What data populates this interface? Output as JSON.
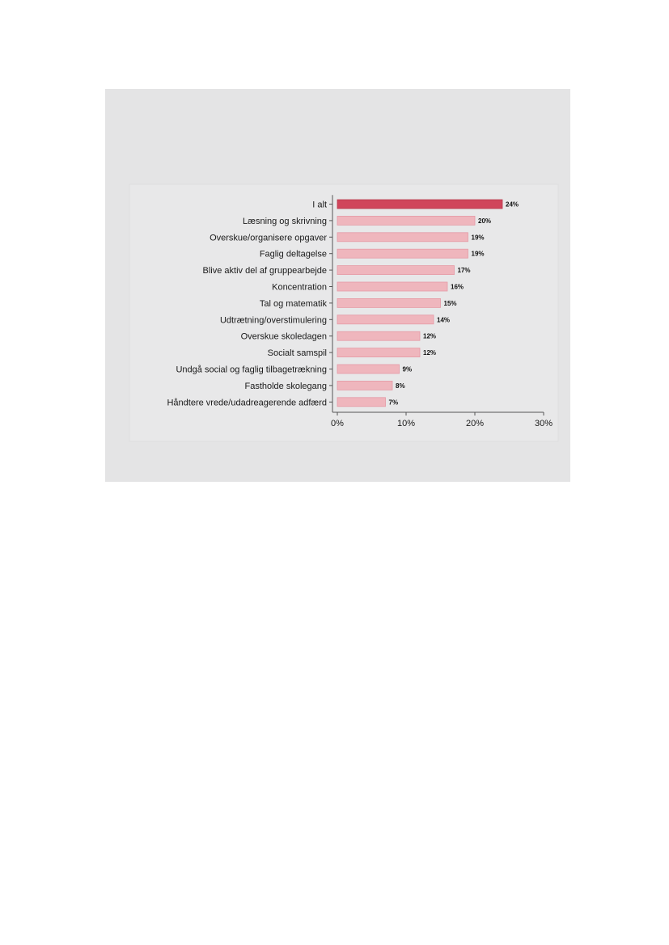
{
  "chart_data": {
    "type": "bar",
    "orientation": "horizontal",
    "categories": [
      "I alt",
      "Læsning og skrivning",
      "Overskue/organisere opgaver",
      "Faglig deltagelse",
      "Blive aktiv del af gruppearbejde",
      "Koncentration",
      "Tal og matematik",
      "Udtrætning/overstimulering",
      "Overskue skoledagen",
      "Socialt samspil",
      "Undgå social og faglig tilbagetrækning",
      "Fastholde skolegang",
      "Håndtere vrede/udadreagerende adfærd"
    ],
    "values": [
      24,
      20,
      19,
      19,
      17,
      16,
      15,
      14,
      12,
      12,
      9,
      8,
      7
    ],
    "value_labels": [
      "24%",
      "20%",
      "19%",
      "19%",
      "17%",
      "16%",
      "15%",
      "14%",
      "12%",
      "12%",
      "9%",
      "8%",
      "7%"
    ],
    "xlim": [
      0,
      30
    ],
    "x_ticks": [
      0,
      10,
      20,
      30
    ],
    "x_tick_labels": [
      "0%",
      "10%",
      "20%",
      "30%"
    ],
    "title": "",
    "xlabel": "",
    "ylabel": "",
    "grid": false,
    "colors": {
      "highlight": "#d0455b",
      "highlight_edge": "#b8384d",
      "bar": "#efb6bd",
      "bar_edge": "#e59aa5",
      "panel_background": "#e4e4e5",
      "plot_background": "#e8e8e9",
      "axis": "#555555"
    },
    "highlight_index": 0
  }
}
